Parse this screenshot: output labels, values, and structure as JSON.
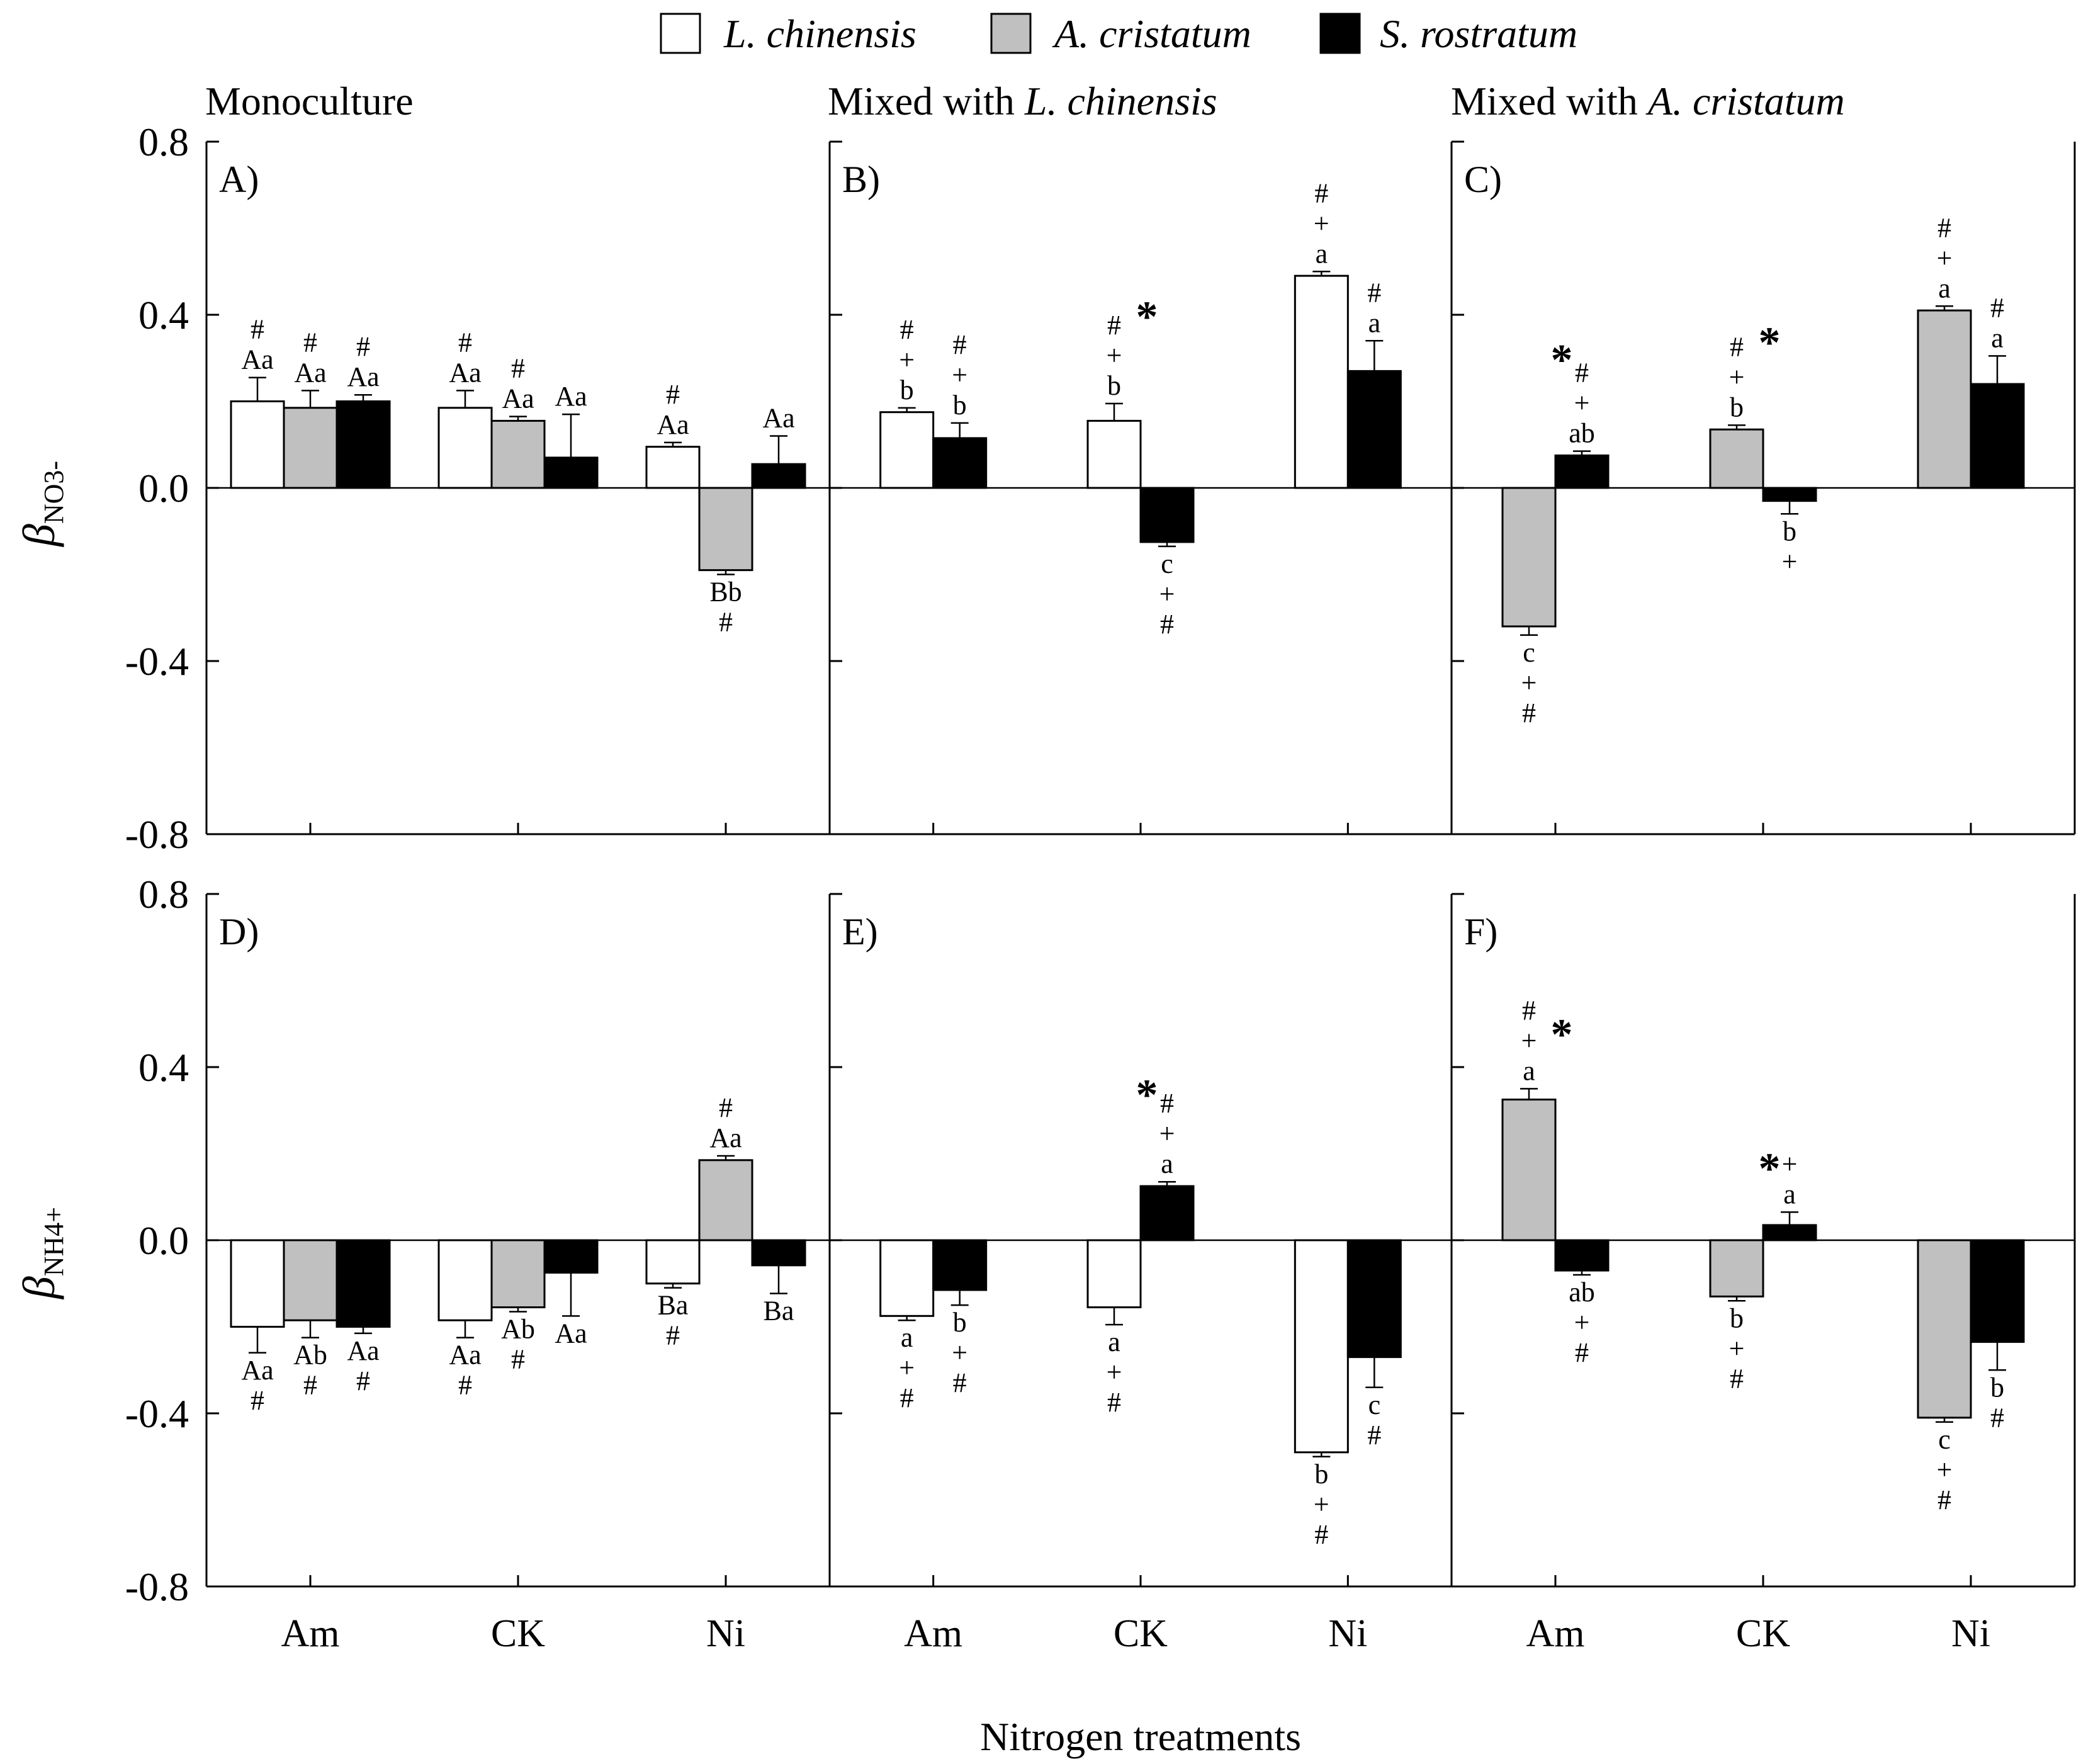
{
  "figure": {
    "x_title": "Nitrogen treatments",
    "legend": [
      {
        "label": "L. chinensis",
        "color": "#ffffff"
      },
      {
        "label": "A. cristatum",
        "color": "#c0c0c0"
      },
      {
        "label": "S. rostratum",
        "color": "#000000"
      }
    ],
    "columns": [
      {
        "prefix": "Monoculture",
        "italic": ""
      },
      {
        "prefix": "Mixed with ",
        "italic": "L. chinensis"
      },
      {
        "prefix": "Mixed with ",
        "italic": "A. cristatum"
      }
    ],
    "rows": [
      {
        "ylabel_main": "β",
        "ylabel_sub": "NO3-"
      },
      {
        "ylabel_main": "β",
        "ylabel_sub": "NH4+"
      }
    ]
  },
  "chart_data": [
    {
      "type": "bar",
      "panel": "A)",
      "ylim": [
        -0.8,
        0.8
      ],
      "yticks": [
        "0.8",
        "0.4",
        "0.0",
        "-0.4",
        "-0.8"
      ],
      "categories": [
        "Am",
        "CK",
        "Ni"
      ],
      "series": [
        {
          "name": "L. chinensis",
          "color": "#ffffff",
          "values": [
            0.2,
            0.185,
            0.095
          ],
          "errors": [
            0.055,
            0.04,
            0.01
          ],
          "annotations": [
            [
              "#",
              "Aa"
            ],
            [
              "#",
              "Aa"
            ],
            [
              "#",
              "Aa"
            ]
          ]
        },
        {
          "name": "A. cristatum",
          "color": "#c0c0c0",
          "values": [
            0.185,
            0.155,
            -0.19
          ],
          "errors": [
            0.04,
            0.01,
            0.01
          ],
          "annotations": [
            [
              "#",
              "Aa"
            ],
            [
              "#",
              "Aa"
            ],
            [
              "Bb",
              "#"
            ]
          ]
        },
        {
          "name": "S. rostratum",
          "color": "#000000",
          "values": [
            0.2,
            0.07,
            0.055
          ],
          "errors": [
            0.015,
            0.1,
            0.065
          ],
          "annotations": [
            [
              "#",
              "Aa"
            ],
            [
              "Aa"
            ],
            [
              "Aa"
            ]
          ]
        }
      ],
      "stars": []
    },
    {
      "type": "bar",
      "panel": "B)",
      "ylim": [
        -0.8,
        0.8
      ],
      "categories": [
        "Am",
        "CK",
        "Ni"
      ],
      "series": [
        {
          "name": "L. chinensis",
          "color": "#ffffff",
          "values": [
            0.175,
            0.155,
            0.49
          ],
          "errors": [
            0.01,
            0.04,
            0.01
          ],
          "annotations": [
            [
              "#",
              "+",
              "b"
            ],
            [
              "#",
              "+",
              "b"
            ],
            [
              "#",
              "+",
              "a"
            ]
          ]
        },
        {
          "name": "S. rostratum",
          "color": "#000000",
          "values": [
            0.115,
            -0.125,
            0.27
          ],
          "errors": [
            0.035,
            0.01,
            0.07
          ],
          "annotations": [
            [
              "#",
              "+",
              "b"
            ],
            [
              "c",
              "+",
              "#"
            ],
            [
              "#",
              "a"
            ]
          ]
        }
      ],
      "stars": [
        {
          "category": "CK",
          "value": 0.42
        }
      ]
    },
    {
      "type": "bar",
      "panel": "C)",
      "ylim": [
        -0.8,
        0.8
      ],
      "categories": [
        "Am",
        "CK",
        "Ni"
      ],
      "series": [
        {
          "name": "A. cristatum",
          "color": "#c0c0c0",
          "values": [
            -0.32,
            0.135,
            0.41
          ],
          "errors": [
            0.02,
            0.01,
            0.01
          ],
          "annotations": [
            [
              "c",
              "+",
              "#"
            ],
            [
              "#",
              "+",
              "b"
            ],
            [
              "#",
              "+",
              "a"
            ]
          ]
        },
        {
          "name": "S. rostratum",
          "color": "#000000",
          "values": [
            0.075,
            -0.03,
            0.24
          ],
          "errors": [
            0.01,
            0.03,
            0.065
          ],
          "annotations": [
            [
              "#",
              "+",
              "ab"
            ],
            [
              "b",
              "+"
            ],
            [
              "#",
              "a"
            ]
          ]
        }
      ],
      "stars": [
        {
          "category": "Am",
          "value": 0.32
        },
        {
          "category": "CK",
          "value": 0.36
        }
      ]
    },
    {
      "type": "bar",
      "panel": "D)",
      "ylim": [
        -0.8,
        0.8
      ],
      "yticks": [
        "0.8",
        "0.4",
        "0.0",
        "-0.4",
        "-0.8"
      ],
      "categories": [
        "Am",
        "CK",
        "Ni"
      ],
      "series": [
        {
          "name": "L. chinensis",
          "color": "#ffffff",
          "values": [
            -0.2,
            -0.185,
            -0.1
          ],
          "errors": [
            0.06,
            0.04,
            0.01
          ],
          "annotations": [
            [
              "Aa",
              "#"
            ],
            [
              "Aa",
              "#"
            ],
            [
              "Ba",
              "#"
            ]
          ]
        },
        {
          "name": "A. cristatum",
          "color": "#c0c0c0",
          "values": [
            -0.185,
            -0.155,
            0.185
          ],
          "errors": [
            0.04,
            0.01,
            0.01
          ],
          "annotations": [
            [
              "Ab",
              "#"
            ],
            [
              "Ab",
              "#"
            ],
            [
              "#",
              "Aa"
            ]
          ]
        },
        {
          "name": "S. rostratum",
          "color": "#000000",
          "values": [
            -0.2,
            -0.075,
            -0.058
          ],
          "errors": [
            0.015,
            0.1,
            0.065
          ],
          "annotations": [
            [
              "Aa",
              "#"
            ],
            [
              "Aa"
            ],
            [
              "Ba"
            ]
          ]
        }
      ],
      "stars": []
    },
    {
      "type": "bar",
      "panel": "E)",
      "ylim": [
        -0.8,
        0.8
      ],
      "categories": [
        "Am",
        "CK",
        "Ni"
      ],
      "series": [
        {
          "name": "L. chinensis",
          "color": "#ffffff",
          "values": [
            -0.175,
            -0.155,
            -0.49
          ],
          "errors": [
            0.01,
            0.04,
            0.01
          ],
          "annotations": [
            [
              "a",
              "+",
              "#"
            ],
            [
              "a",
              "+",
              "#"
            ],
            [
              "b",
              "+",
              "#"
            ]
          ]
        },
        {
          "name": "S. rostratum",
          "color": "#000000",
          "values": [
            -0.115,
            0.125,
            -0.27
          ],
          "errors": [
            0.035,
            0.01,
            0.07
          ],
          "annotations": [
            [
              "b",
              "+",
              "#"
            ],
            [
              "#",
              "+",
              "a"
            ],
            [
              "c",
              "#"
            ]
          ]
        }
      ],
      "stars": [
        {
          "category": "CK",
          "value": 0.36
        }
      ]
    },
    {
      "type": "bar",
      "panel": "F)",
      "ylim": [
        -0.8,
        0.8
      ],
      "categories": [
        "Am",
        "CK",
        "Ni"
      ],
      "series": [
        {
          "name": "A. cristatum",
          "color": "#c0c0c0",
          "values": [
            0.325,
            -0.13,
            -0.41
          ],
          "errors": [
            0.025,
            0.01,
            0.01
          ],
          "annotations": [
            [
              "#",
              "+",
              "a"
            ],
            [
              "b",
              "+",
              "#"
            ],
            [
              "c",
              "+",
              "#"
            ]
          ]
        },
        {
          "name": "S. rostratum",
          "color": "#000000",
          "values": [
            -0.07,
            0.035,
            -0.235
          ],
          "errors": [
            0.01,
            0.03,
            0.065
          ],
          "annotations": [
            [
              "ab",
              "+",
              "#"
            ],
            [
              "+",
              "a"
            ],
            [
              "b",
              "#"
            ]
          ]
        }
      ],
      "stars": [
        {
          "category": "Am",
          "value": 0.5
        },
        {
          "category": "CK",
          "value": 0.19
        }
      ]
    }
  ]
}
